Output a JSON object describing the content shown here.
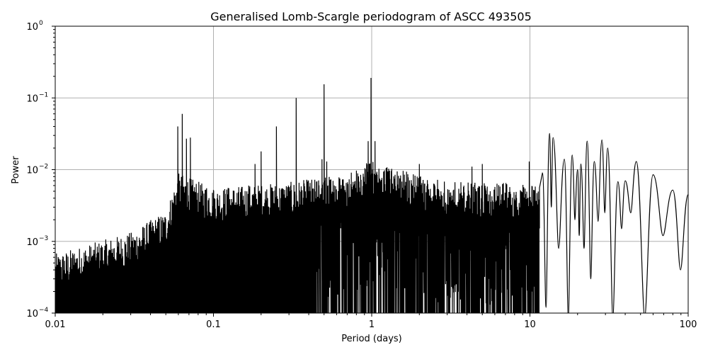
{
  "figure": {
    "title": "Generalised Lomb-Scargle periodogram of ASCC 493505",
    "xlabel": "Period (days)",
    "ylabel": "Power"
  },
  "axes": {
    "x_ticks": [
      {
        "value": 0.01,
        "label": "0.01"
      },
      {
        "value": 0.1,
        "label": "0.1"
      },
      {
        "value": 1,
        "label": "1"
      },
      {
        "value": 10,
        "label": "10"
      },
      {
        "value": 100,
        "label": "100"
      }
    ],
    "y_ticks": [
      {
        "value": 0.0001,
        "base": "10",
        "exp": "−4"
      },
      {
        "value": 0.001,
        "base": "10",
        "exp": "−3"
      },
      {
        "value": 0.01,
        "base": "10",
        "exp": "−2"
      },
      {
        "value": 0.1,
        "base": "10",
        "exp": "−1"
      },
      {
        "value": 1,
        "base": "10",
        "exp": "0"
      }
    ]
  },
  "colors": {
    "line": "#000000",
    "grid": "#b0b0b0",
    "axes": "#000000"
  },
  "chart_data": {
    "type": "line",
    "title": "Generalised Lomb-Scargle periodogram of ASCC 493505",
    "xlabel": "Period (days)",
    "ylabel": "Power",
    "xscale": "log",
    "yscale": "log",
    "xlim": [
      0.01,
      100
    ],
    "ylim": [
      0.0001,
      1
    ],
    "grid": true,
    "legend": null,
    "peaks": [
      {
        "period": 0.0595,
        "power": 0.04
      },
      {
        "period": 0.0635,
        "power": 0.06
      },
      {
        "period": 0.0675,
        "power": 0.027
      },
      {
        "period": 0.0715,
        "power": 0.028
      },
      {
        "period": 0.0905,
        "power": 0.0055
      },
      {
        "period": 0.1,
        "power": 0.0052
      },
      {
        "period": 0.125,
        "power": 0.0055
      },
      {
        "period": 0.167,
        "power": 0.006
      },
      {
        "period": 0.2,
        "power": 0.018
      },
      {
        "period": 0.183,
        "power": 0.012
      },
      {
        "period": 0.25,
        "power": 0.04
      },
      {
        "period": 0.333,
        "power": 0.1
      },
      {
        "period": 0.5,
        "power": 0.155
      },
      {
        "period": 0.485,
        "power": 0.014
      },
      {
        "period": 0.52,
        "power": 0.013
      },
      {
        "period": 0.95,
        "power": 0.025
      },
      {
        "period": 0.99,
        "power": 0.19
      },
      {
        "period": 1.05,
        "power": 0.025
      },
      {
        "period": 2.0,
        "power": 0.012
      },
      {
        "period": 4.3,
        "power": 0.011
      },
      {
        "period": 5.0,
        "power": 0.012
      },
      {
        "period": 9.9,
        "power": 0.013
      }
    ],
    "long_period_envelope": [
      {
        "period": 12.0,
        "power": 0.009
      },
      {
        "period": 13.3,
        "power": 0.032
      },
      {
        "period": 14.0,
        "power": 0.028
      },
      {
        "period": 16.5,
        "power": 0.014
      },
      {
        "period": 18.5,
        "power": 0.016
      },
      {
        "period": 20.0,
        "power": 0.01
      },
      {
        "period": 21.0,
        "power": 0.012
      },
      {
        "period": 23.0,
        "power": 0.025
      },
      {
        "period": 25.5,
        "power": 0.013
      },
      {
        "period": 28.5,
        "power": 0.026
      },
      {
        "period": 31.0,
        "power": 0.02
      },
      {
        "period": 36.0,
        "power": 0.0068
      },
      {
        "period": 40.0,
        "power": 0.007
      },
      {
        "period": 47.0,
        "power": 0.013
      },
      {
        "period": 60.0,
        "power": 0.0085
      },
      {
        "period": 80.0,
        "power": 0.0052
      },
      {
        "period": 100.0,
        "power": 0.0045
      }
    ],
    "noise_floor": [
      {
        "period": 0.01,
        "power": 0.0003
      },
      {
        "period": 0.03,
        "power": 0.0006
      },
      {
        "period": 0.05,
        "power": 0.0012
      },
      {
        "period": 0.06,
        "power": 0.004
      },
      {
        "period": 0.1,
        "power": 0.0025
      },
      {
        "period": 0.3,
        "power": 0.003
      },
      {
        "period": 0.7,
        "power": 0.004
      },
      {
        "period": 1.0,
        "power": 0.006
      },
      {
        "period": 3.0,
        "power": 0.003
      },
      {
        "period": 10.0,
        "power": 0.003
      }
    ]
  }
}
